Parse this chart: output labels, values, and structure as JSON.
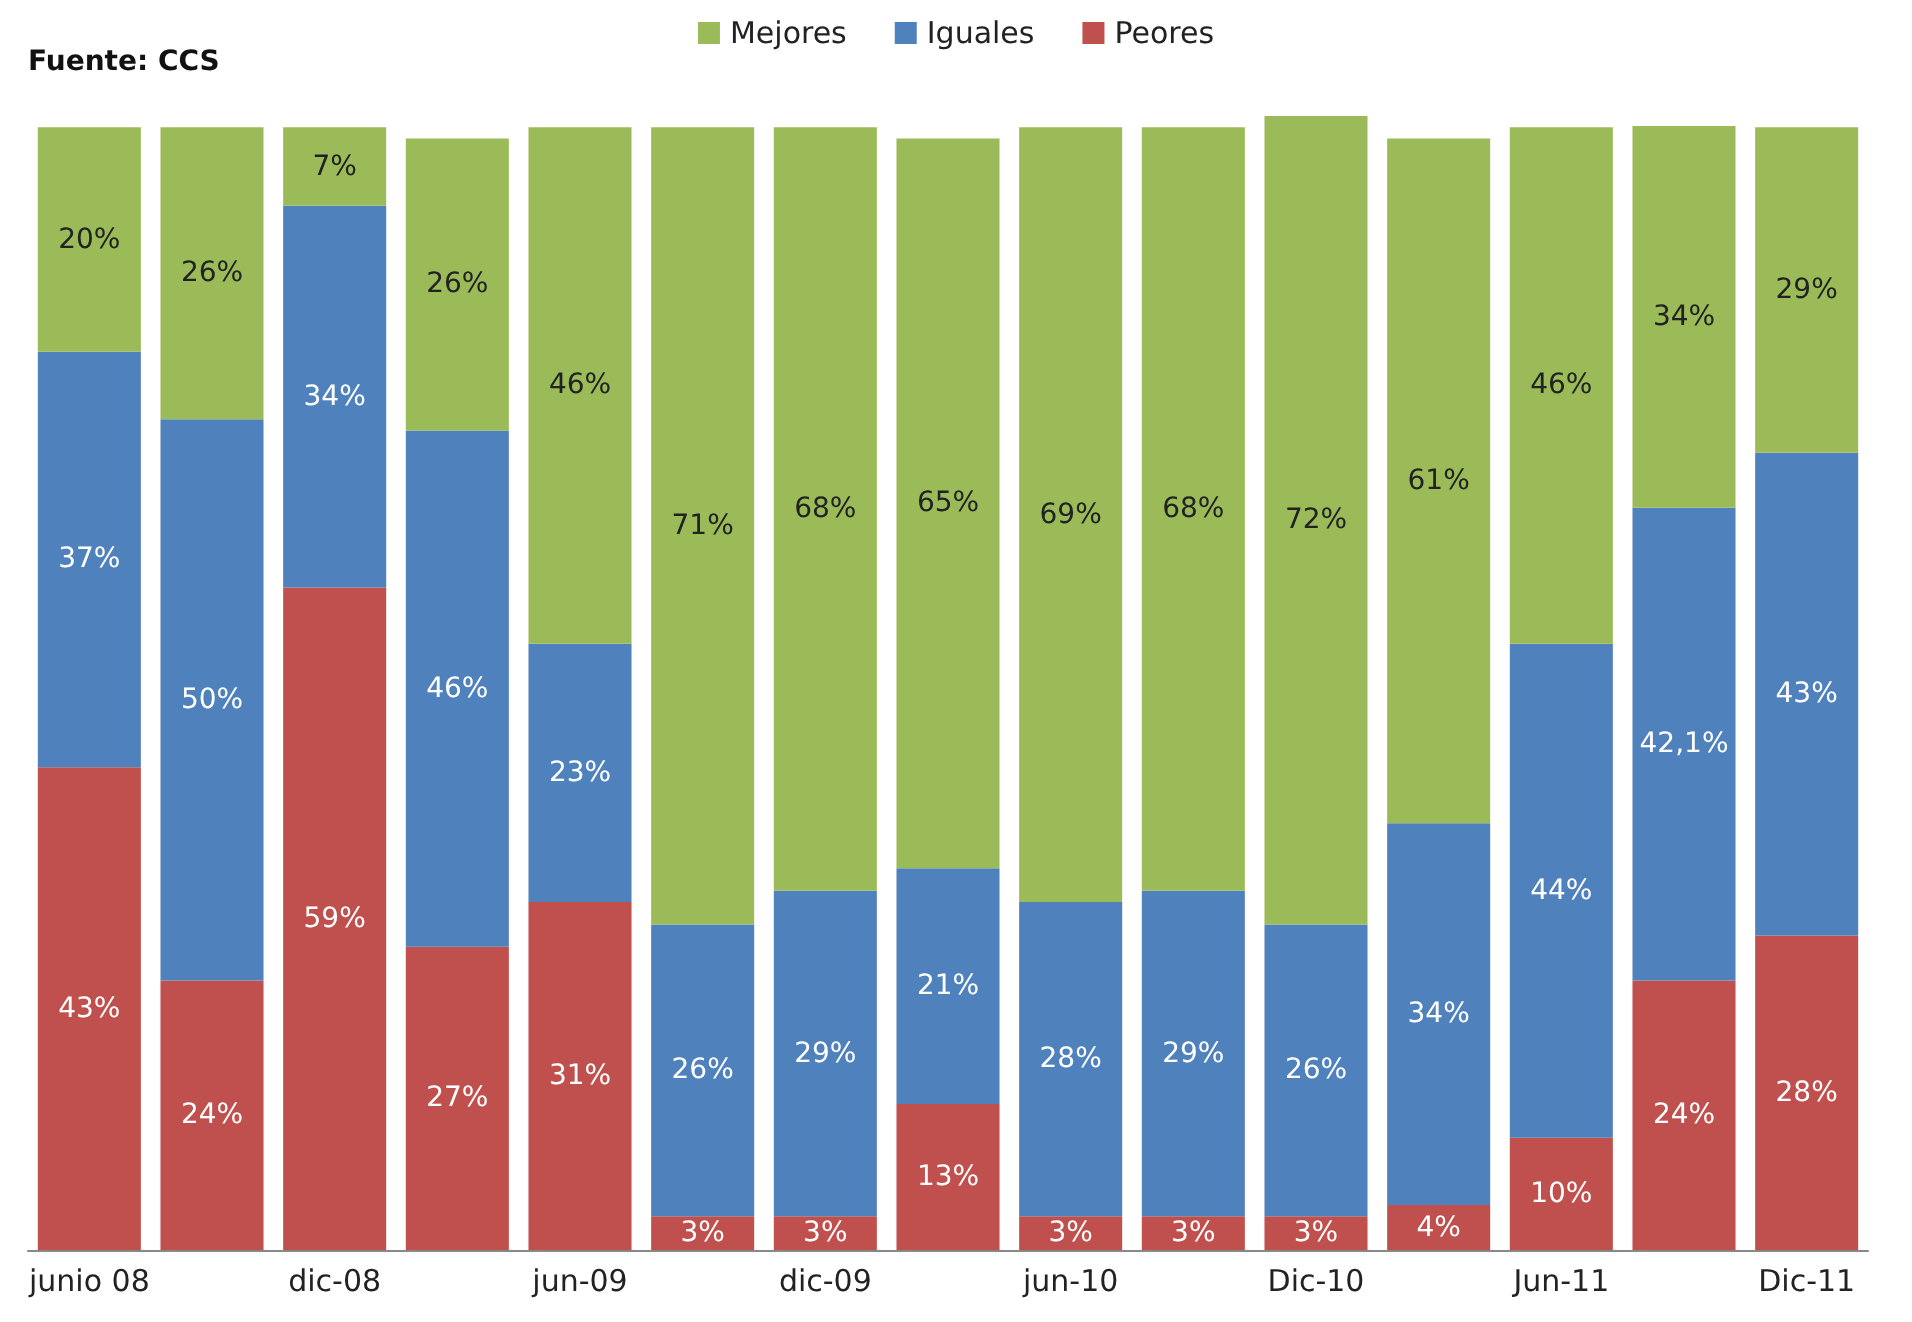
{
  "chart_data": {
    "type": "bar",
    "stacked": true,
    "legend": "top",
    "annotations": [
      "Fuente: CCS"
    ],
    "categories": [
      "junio 08",
      null,
      "dic-08",
      null,
      "jun-09",
      null,
      "dic-09",
      null,
      "jun-10",
      null,
      "Dic-10",
      null,
      "Jun-11",
      null,
      "Dic-11"
    ],
    "series": [
      {
        "name": "Peores",
        "color": "#c0504d",
        "values": [
          43,
          24,
          59,
          27,
          31,
          3,
          3,
          13,
          3,
          3,
          3,
          4,
          10,
          24,
          28
        ],
        "value_labels": [
          "43%",
          "24%",
          "59%",
          "27%",
          "31%",
          "3%",
          "3%",
          "13%",
          "3%",
          "3%",
          "3%",
          "4%",
          "10%",
          "24%",
          "28%"
        ]
      },
      {
        "name": "Iguales",
        "color": "#4f81bd",
        "values": [
          37,
          50,
          34,
          46,
          23,
          26,
          29,
          21,
          28,
          29,
          26,
          34,
          44,
          42.1,
          43
        ],
        "value_labels": [
          "37%",
          "50%",
          "34%",
          "46%",
          "23%",
          "26%",
          "29%",
          "21%",
          "28%",
          "29%",
          "26%",
          "34%",
          "44%",
          "42,1%",
          "43%"
        ]
      },
      {
        "name": "Mejores",
        "color": "#9bbb59",
        "values": [
          20,
          26,
          7,
          26,
          46,
          71,
          68,
          65,
          69,
          68,
          72,
          61,
          46,
          34,
          29
        ],
        "value_labels": [
          "20%",
          "26%",
          "7%",
          "26%",
          "46%",
          "71%",
          "68%",
          "65%",
          "69%",
          "68%",
          "72%",
          "61%",
          "46%",
          "34%",
          "29%"
        ]
      }
    ]
  }
}
